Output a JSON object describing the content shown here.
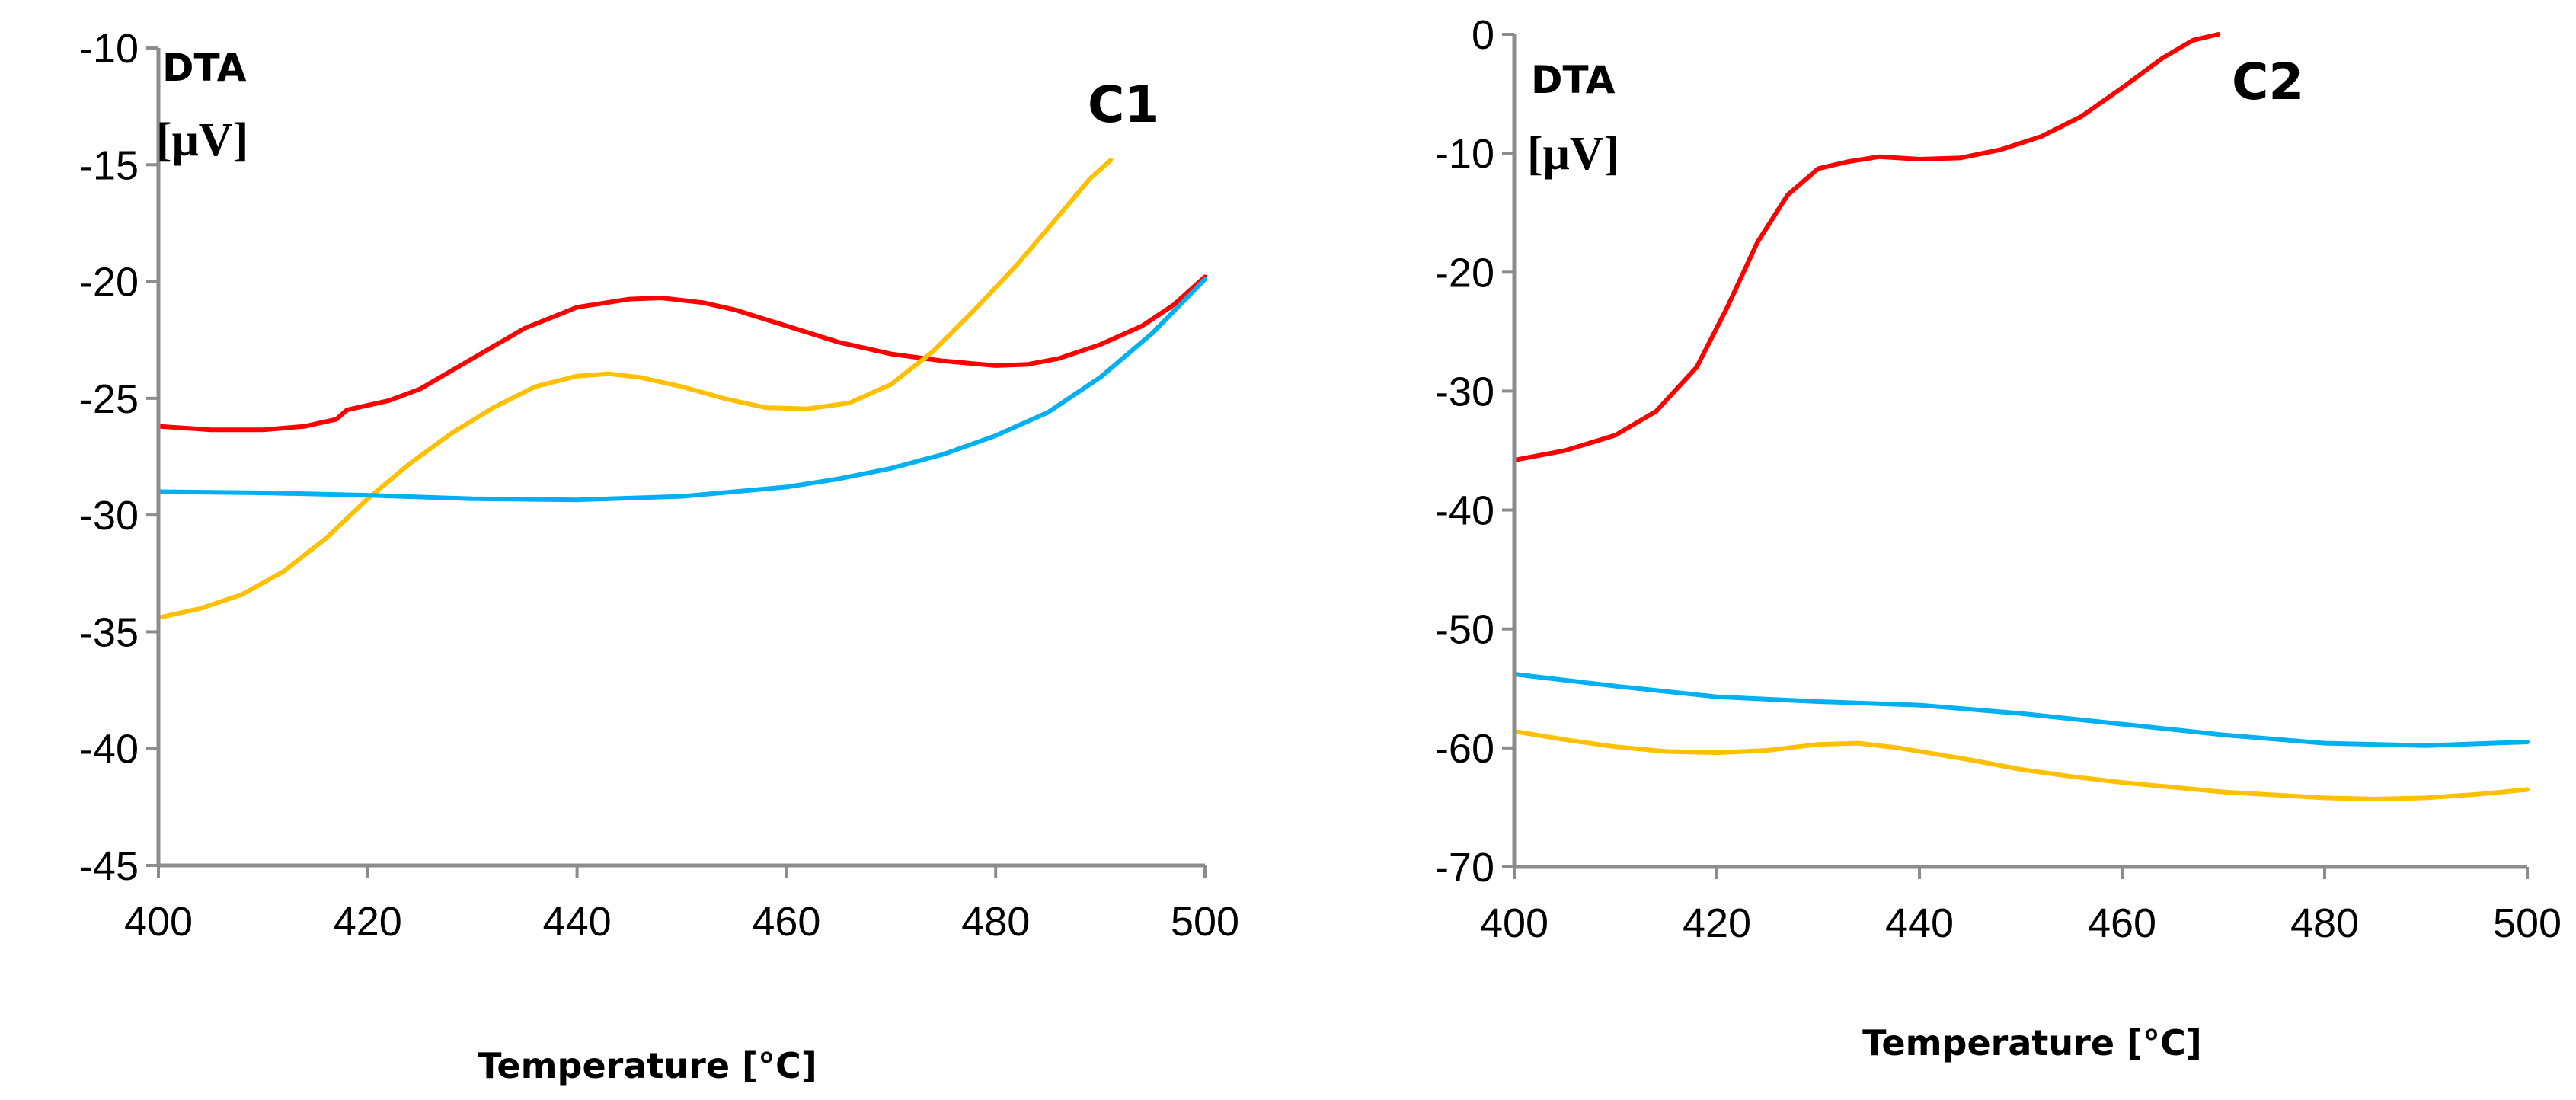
{
  "chart_data": [
    {
      "type": "line",
      "title": "C1",
      "ylabel": "DTA",
      "yunit": "[μV]",
      "xlabel": "Temperature [°C]",
      "xlim": [
        400,
        500
      ],
      "ylim": [
        -45,
        -10
      ],
      "xticks": [
        "400",
        "420",
        "440",
        "460",
        "480",
        "500"
      ],
      "yticks": [
        "-10",
        "-15",
        "-20",
        "-25",
        "-30",
        "-35",
        "-40",
        "-45"
      ],
      "grid": false,
      "series": [
        {
          "name": "red",
          "color": "#ff0000",
          "x": [
            400,
            405,
            410,
            414,
            417,
            418,
            420,
            422,
            425,
            430,
            435,
            440,
            445,
            448,
            452,
            455,
            460,
            465,
            470,
            475,
            480,
            483,
            486,
            490,
            494,
            497,
            500
          ],
          "y": [
            -26.2,
            -26.35,
            -26.35,
            -26.2,
            -25.9,
            -25.5,
            -25.3,
            -25.1,
            -24.6,
            -23.3,
            -22.0,
            -21.1,
            -20.75,
            -20.7,
            -20.9,
            -21.2,
            -21.9,
            -22.6,
            -23.1,
            -23.4,
            -23.6,
            -23.55,
            -23.3,
            -22.7,
            -21.9,
            -21.0,
            -19.8
          ]
        },
        {
          "name": "yellow",
          "color": "#ffc000",
          "x": [
            400,
            404,
            408,
            412,
            416,
            420,
            424,
            428,
            432,
            436,
            440,
            443,
            446,
            450,
            454,
            458,
            462,
            466,
            470,
            474,
            478,
            482,
            486,
            489,
            491
          ],
          "y": [
            -34.4,
            -34.0,
            -33.4,
            -32.4,
            -31.0,
            -29.3,
            -27.8,
            -26.5,
            -25.4,
            -24.5,
            -24.05,
            -23.95,
            -24.1,
            -24.5,
            -25.0,
            -25.4,
            -25.45,
            -25.2,
            -24.4,
            -23.0,
            -21.2,
            -19.3,
            -17.2,
            -15.6,
            -14.8
          ]
        },
        {
          "name": "blue",
          "color": "#00b0f0",
          "x": [
            400,
            410,
            420,
            430,
            440,
            450,
            460,
            465,
            470,
            475,
            480,
            485,
            490,
            495,
            500
          ],
          "y": [
            -29.0,
            -29.05,
            -29.15,
            -29.3,
            -29.35,
            -29.2,
            -28.8,
            -28.45,
            -28.0,
            -27.4,
            -26.6,
            -25.6,
            -24.1,
            -22.2,
            -19.9
          ]
        }
      ]
    },
    {
      "type": "line",
      "title": "C2",
      "ylabel": "DTA",
      "yunit": "[μV]",
      "xlabel": "Temperature [°C]",
      "xlim": [
        400,
        500
      ],
      "ylim": [
        -70,
        0
      ],
      "xticks": [
        "400",
        "420",
        "440",
        "460",
        "480",
        "500"
      ],
      "yticks": [
        "0",
        "-10",
        "-20",
        "-30",
        "-40",
        "-50",
        "-60",
        "-70"
      ],
      "grid": false,
      "series": [
        {
          "name": "red",
          "color": "#ff0000",
          "x": [
            400,
            405,
            410,
            414,
            418,
            421,
            424,
            427,
            430,
            433,
            436,
            440,
            444,
            448,
            452,
            456,
            460,
            464,
            467,
            469.5
          ],
          "y": [
            -35.8,
            -35.0,
            -33.7,
            -31.7,
            -28.0,
            -23.0,
            -17.5,
            -13.5,
            -11.3,
            -10.7,
            -10.3,
            -10.5,
            -10.4,
            -9.7,
            -8.6,
            -6.9,
            -4.5,
            -2.0,
            -0.5,
            0.0
          ]
        },
        {
          "name": "blue",
          "color": "#00b0f0",
          "x": [
            400,
            410,
            420,
            430,
            440,
            450,
            460,
            470,
            480,
            490,
            500
          ],
          "y": [
            -53.8,
            -54.8,
            -55.7,
            -56.1,
            -56.4,
            -57.1,
            -58.0,
            -58.9,
            -59.6,
            -59.8,
            -59.5
          ]
        },
        {
          "name": "yellow",
          "color": "#ffc000",
          "x": [
            400,
            405,
            410,
            415,
            420,
            425,
            430,
            434,
            438,
            445,
            450,
            455,
            460,
            470,
            480,
            485,
            490,
            495,
            500
          ],
          "y": [
            -58.6,
            -59.3,
            -59.9,
            -60.3,
            -60.4,
            -60.2,
            -59.7,
            -59.6,
            -60.0,
            -61.0,
            -61.8,
            -62.4,
            -62.9,
            -63.7,
            -64.2,
            -64.3,
            -64.2,
            -63.9,
            -63.5
          ]
        }
      ]
    }
  ]
}
